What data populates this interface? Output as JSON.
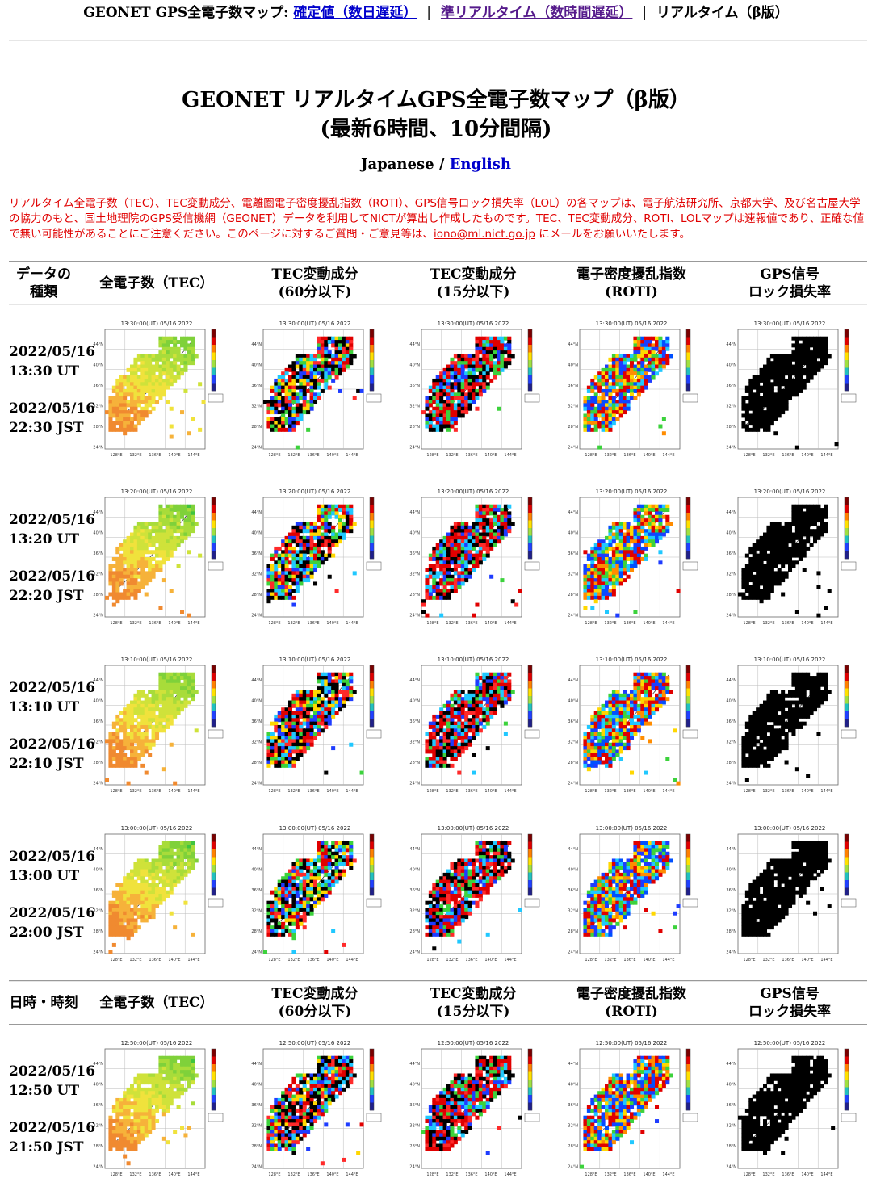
{
  "topnav": {
    "prefix": "GEONET GPS全電子数マップ:",
    "link_final": "確定値（数日遅延）",
    "link_near": "準リアルタイム（数時間遅延）",
    "current": "リアルタイム（β版）",
    "separator": "|"
  },
  "page": {
    "title_line1": "GEONET リアルタイムGPS全電子数マップ（β版）",
    "title_line2": "(最新6時間、10分間隔)"
  },
  "language": {
    "japanese": "Japanese",
    "separator": "/",
    "english": "English"
  },
  "notice": {
    "text_before": "リアルタイム全電子数（TEC）、TEC変動成分、電離圏電子密度擾乱指数（ROTI）、GPS信号ロック損失率（LOL）の各マップは、電子航法研究所、京都大学、及び名古屋大学の協力のもと、国土地理院のGPS受信機網（GEONET）データを利用してNICTが算出し作成したものです。TEC、TEC変動成分、ROTI、LOLマップは速報値であり、正確な値で無い可能性があることにご注意ください。このページに対するご質問・ご意見等は、",
    "email": "iono@ml.nict.go.jp",
    "text_after": " にメールをお願いいたします。"
  },
  "header1": {
    "col0": [
      "データの",
      "種類"
    ],
    "col1": "全電子数（TEC）",
    "col2": [
      "TEC変動成分",
      "(60分以下)"
    ],
    "col3": [
      "TEC変動成分",
      "(15分以下)"
    ],
    "col4": [
      "電子密度擾乱指数",
      "(ROTI)"
    ],
    "col5": [
      "GPS信号",
      "ロック損失率"
    ]
  },
  "header2": {
    "col0": "日時・時刻",
    "col1": "全電子数（TEC）",
    "col2": [
      "TEC変動成分",
      "(60分以下)"
    ],
    "col3": [
      "TEC変動成分",
      "(15分以下)"
    ],
    "col4": [
      "電子密度擾乱指数",
      "(ROTI)"
    ],
    "col5": [
      "GPS信号",
      "ロック損失率"
    ]
  },
  "rows": [
    {
      "ut_date": "2022/05/16",
      "ut_time": "13:30 UT",
      "jst_date": "2022/05/16",
      "jst_time": "22:30 JST",
      "map_title": "13:30:00(UT) 05/16 2022"
    },
    {
      "ut_date": "2022/05/16",
      "ut_time": "13:20 UT",
      "jst_date": "2022/05/16",
      "jst_time": "22:20 JST",
      "map_title": "13:20:00(UT) 05/16 2022"
    },
    {
      "ut_date": "2022/05/16",
      "ut_time": "13:10 UT",
      "jst_date": "2022/05/16",
      "jst_time": "22:10 JST",
      "map_title": "13:10:00(UT) 05/16 2022"
    },
    {
      "ut_date": "2022/05/16",
      "ut_time": "13:00 UT",
      "jst_date": "2022/05/16",
      "jst_time": "22:00 JST",
      "map_title": "13:00:00(UT) 05/16 2022"
    },
    {
      "ut_date": "2022/05/16",
      "ut_time": "12:50 UT",
      "jst_date": "2022/05/16",
      "jst_time": "21:50 JST",
      "map_title": "12:50:00(UT) 05/16 2022"
    }
  ],
  "map_axes": {
    "lat_labels": [
      "44°N",
      "40°N",
      "36°N",
      "32°N",
      "28°N",
      "24°N"
    ],
    "lon_labels": [
      "128°E",
      "132°E",
      "136°E",
      "140°E",
      "144°E"
    ]
  },
  "map_types": [
    {
      "id": "tec",
      "name": "全電子数（TEC）",
      "palette": [
        "#3fc43f",
        "#7fd13a",
        "#a8dc3a",
        "#cfe23a",
        "#f0e23c",
        "#f6b23a",
        "#f08a30"
      ]
    },
    {
      "id": "dtec60",
      "name": "TEC変動成分(60分以下)",
      "palette": [
        "#e00000",
        "#ff2a2a",
        "#000000",
        "#000000",
        "#1e3cff",
        "#20c8ff",
        "#ffd700",
        "#3cd23c"
      ]
    },
    {
      "id": "dtec15",
      "name": "TEC変動成分(15分以下)",
      "palette": [
        "#e00000",
        "#ff2a2a",
        "#e00000",
        "#000000",
        "#000000",
        "#1e3cff",
        "#20c8ff",
        "#3cd23c"
      ]
    },
    {
      "id": "roti",
      "name": "電子密度擾乱指数(ROTI)",
      "palette": [
        "#1e3cff",
        "#0050ff",
        "#20c8ff",
        "#3cd23c",
        "#ffd700",
        "#ff8c00",
        "#e00000",
        "#e00000"
      ]
    },
    {
      "id": "lol",
      "name": "GPS信号ロック損失率",
      "palette": [
        "#000000"
      ]
    }
  ],
  "colorbar_colors": [
    "#7a0000",
    "#e00000",
    "#ff8000",
    "#ffe000",
    "#a0e040",
    "#20c0c0",
    "#2040ff",
    "#20208a"
  ],
  "colors": {
    "notice_red": "#e00000",
    "link_blue": "#0000cc",
    "link_visited": "#551a8b",
    "rule_gray": "#999999"
  }
}
